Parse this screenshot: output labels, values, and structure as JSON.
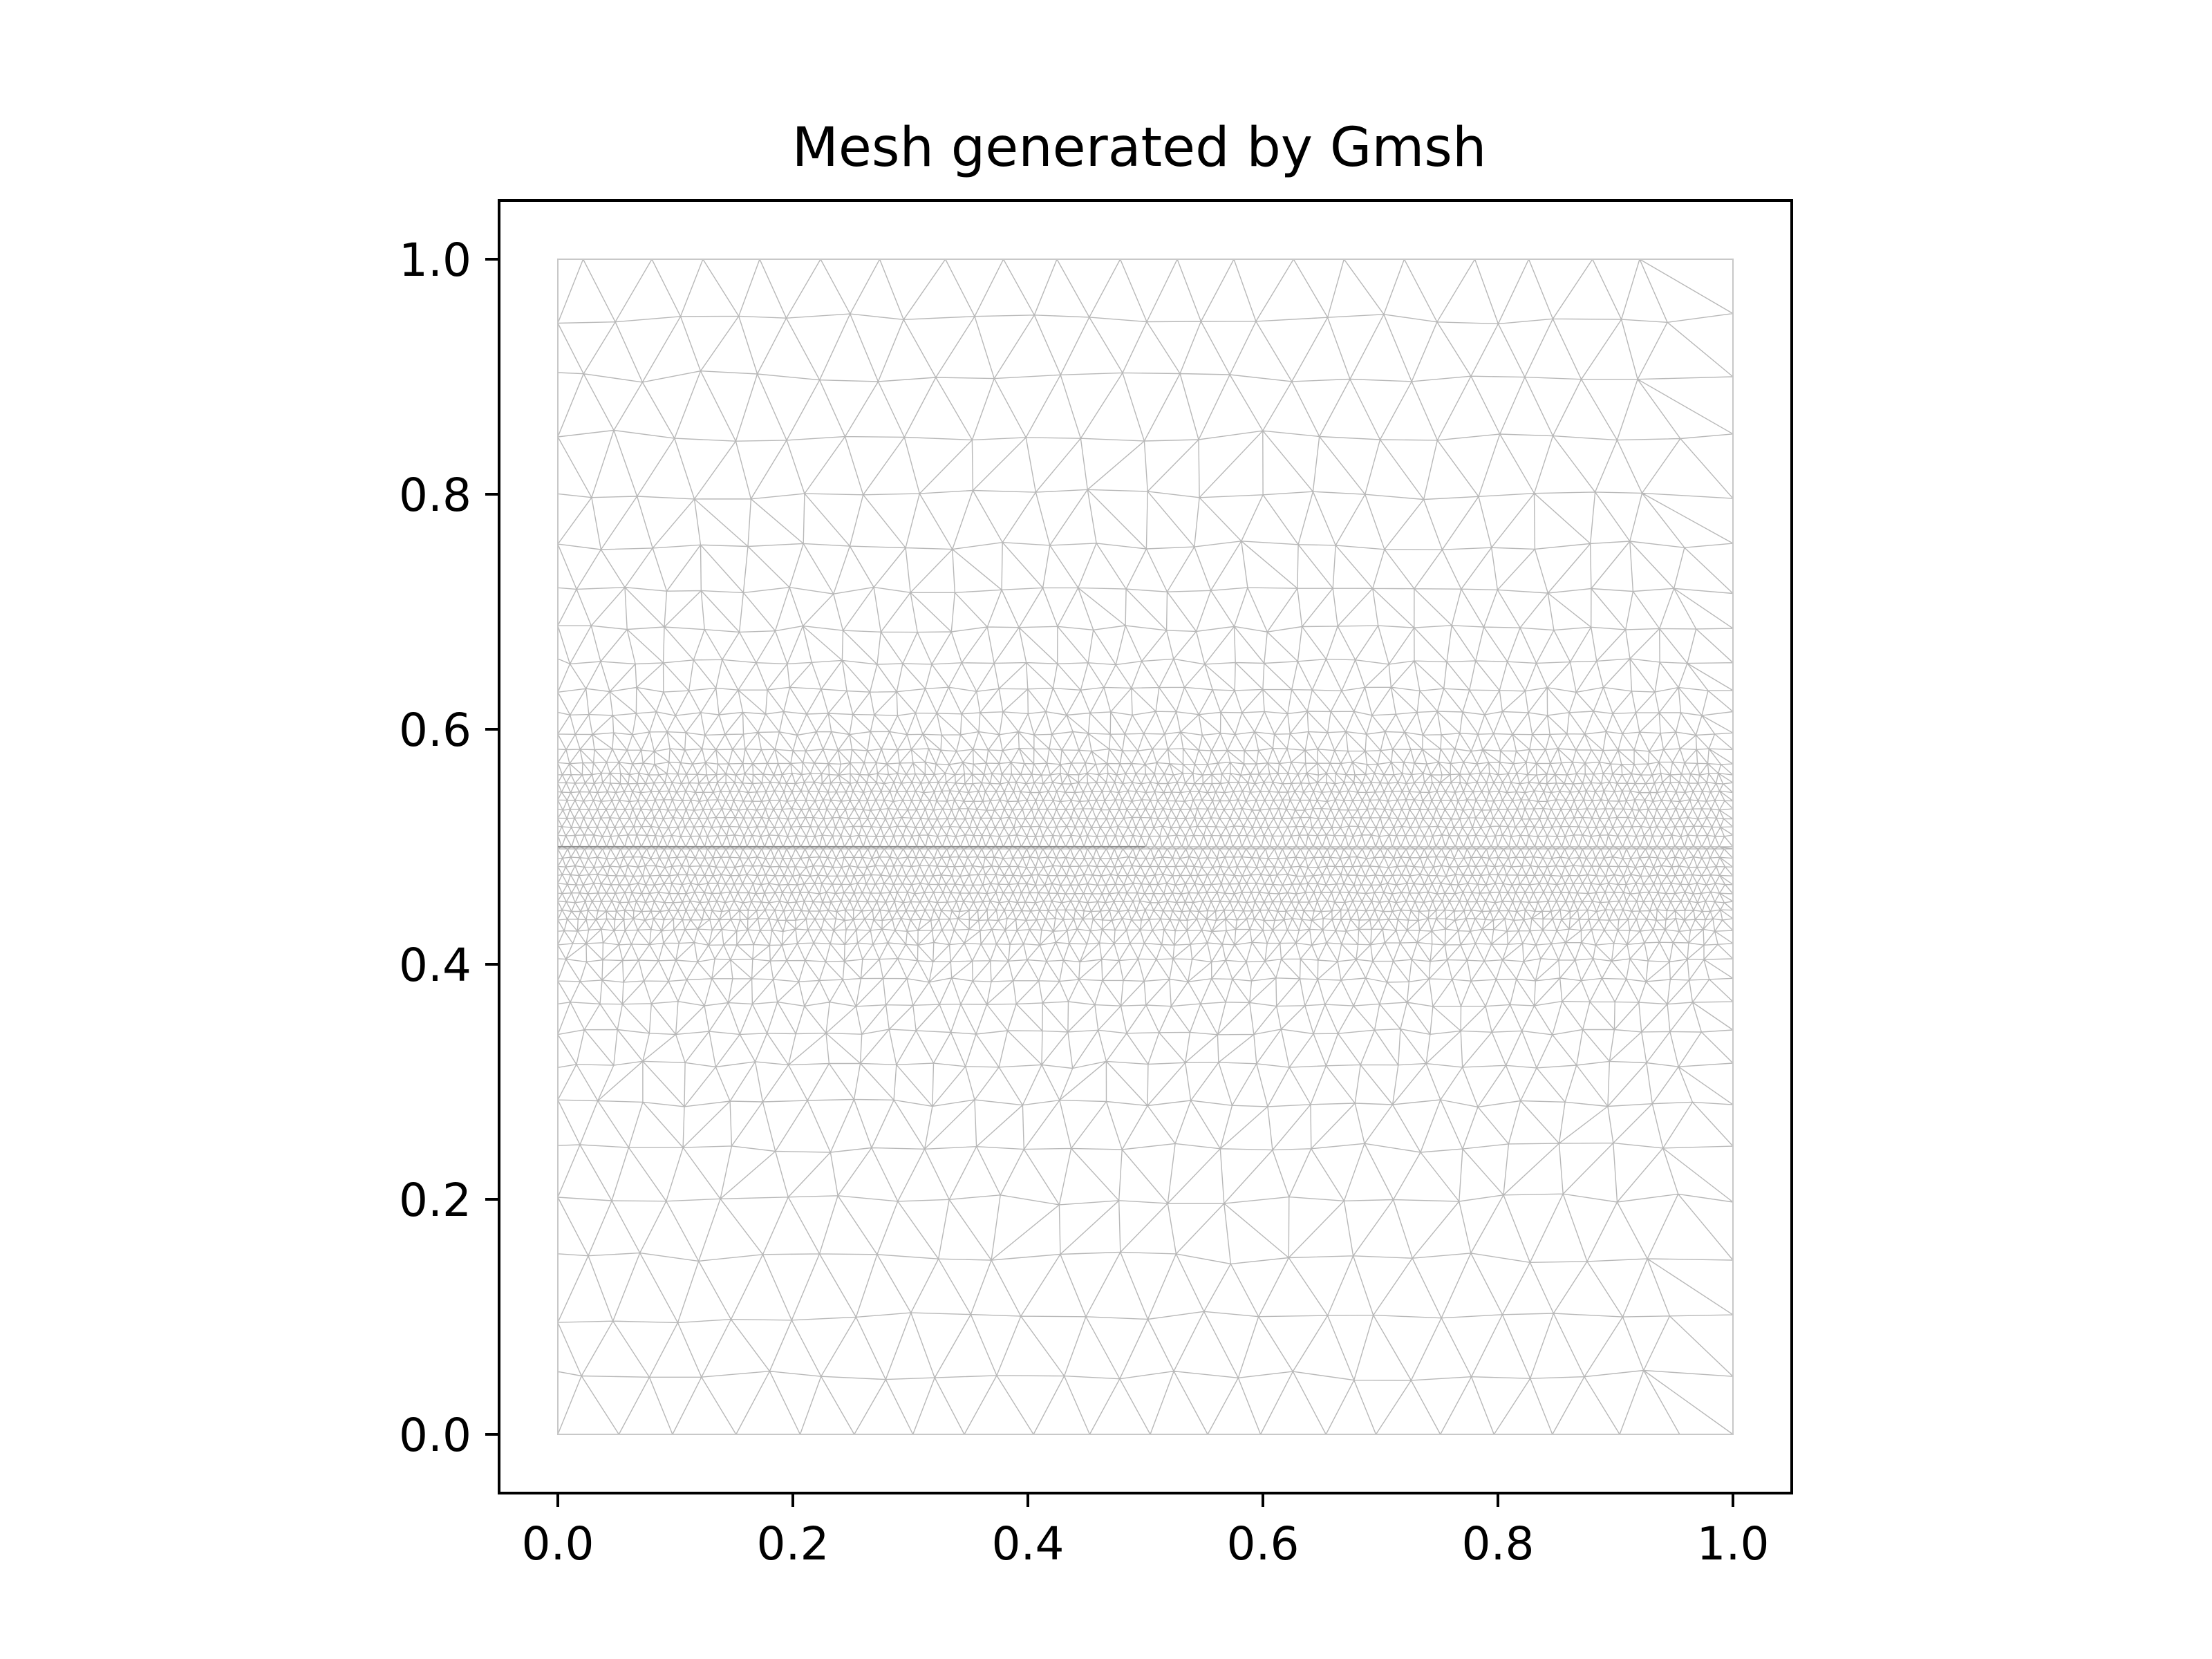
{
  "chart_data": {
    "type": "mesh",
    "title": "Mesh generated by Gmsh",
    "xlabel": "",
    "ylabel": "",
    "xlim": [
      -0.05,
      1.05
    ],
    "ylim": [
      -0.05,
      1.05
    ],
    "xticks": [
      0.0,
      0.2,
      0.4,
      0.6,
      0.8,
      1.0
    ],
    "xtick_labels": [
      "0.0",
      "0.2",
      "0.4",
      "0.6",
      "0.8",
      "1.0"
    ],
    "yticks": [
      0.0,
      0.2,
      0.4,
      0.6,
      0.8,
      1.0
    ],
    "ytick_labels": [
      "0.0",
      "0.2",
      "0.4",
      "0.6",
      "0.8",
      "1.0"
    ],
    "domain": {
      "x": [
        0.0,
        1.0
      ],
      "y": [
        0.0,
        1.0
      ]
    },
    "refined_band": {
      "y": [
        0.44,
        0.56
      ]
    },
    "crack": {
      "x": [
        0.0,
        0.5
      ],
      "y": 0.5
    },
    "grid": false,
    "aspect": "equal",
    "colors": {
      "mesh_edges": "#b8b8b8",
      "axes": "#000000",
      "background": "#ffffff"
    }
  }
}
